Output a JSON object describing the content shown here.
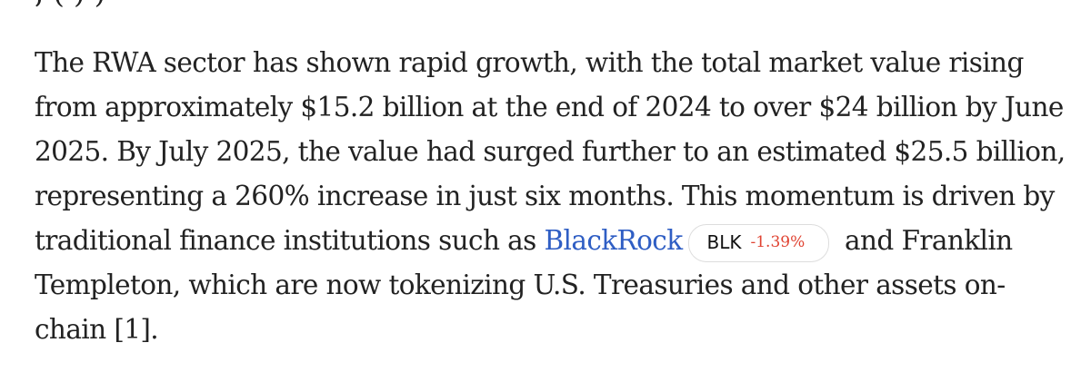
{
  "article": {
    "cut_line_text": ", ( ) )",
    "line1": "The RWA sector has shown rapid growth, with the total market value rising",
    "line2": "from approximately $15.2 billion at the end of 2024 to over $24 billion by June",
    "line3": "2025. By July 2025, the value had surged further to an estimated $25.5 billion,",
    "line4": "representing a 260% increase in just six months. This momentum is driven by",
    "line5_before": "traditional finance institutions such as",
    "line5_link": "BlackRock",
    "line5_after": "and Franklin",
    "line6": "Templeton, which are now tokenizing U.S. Treasuries and other assets on-",
    "line7": "chain [1]."
  },
  "ticker": {
    "symbol": "BLK",
    "change": "-1.39%",
    "change_color": "#e04332"
  },
  "colors": {
    "text": "#222222",
    "link": "#2f5ec4"
  }
}
